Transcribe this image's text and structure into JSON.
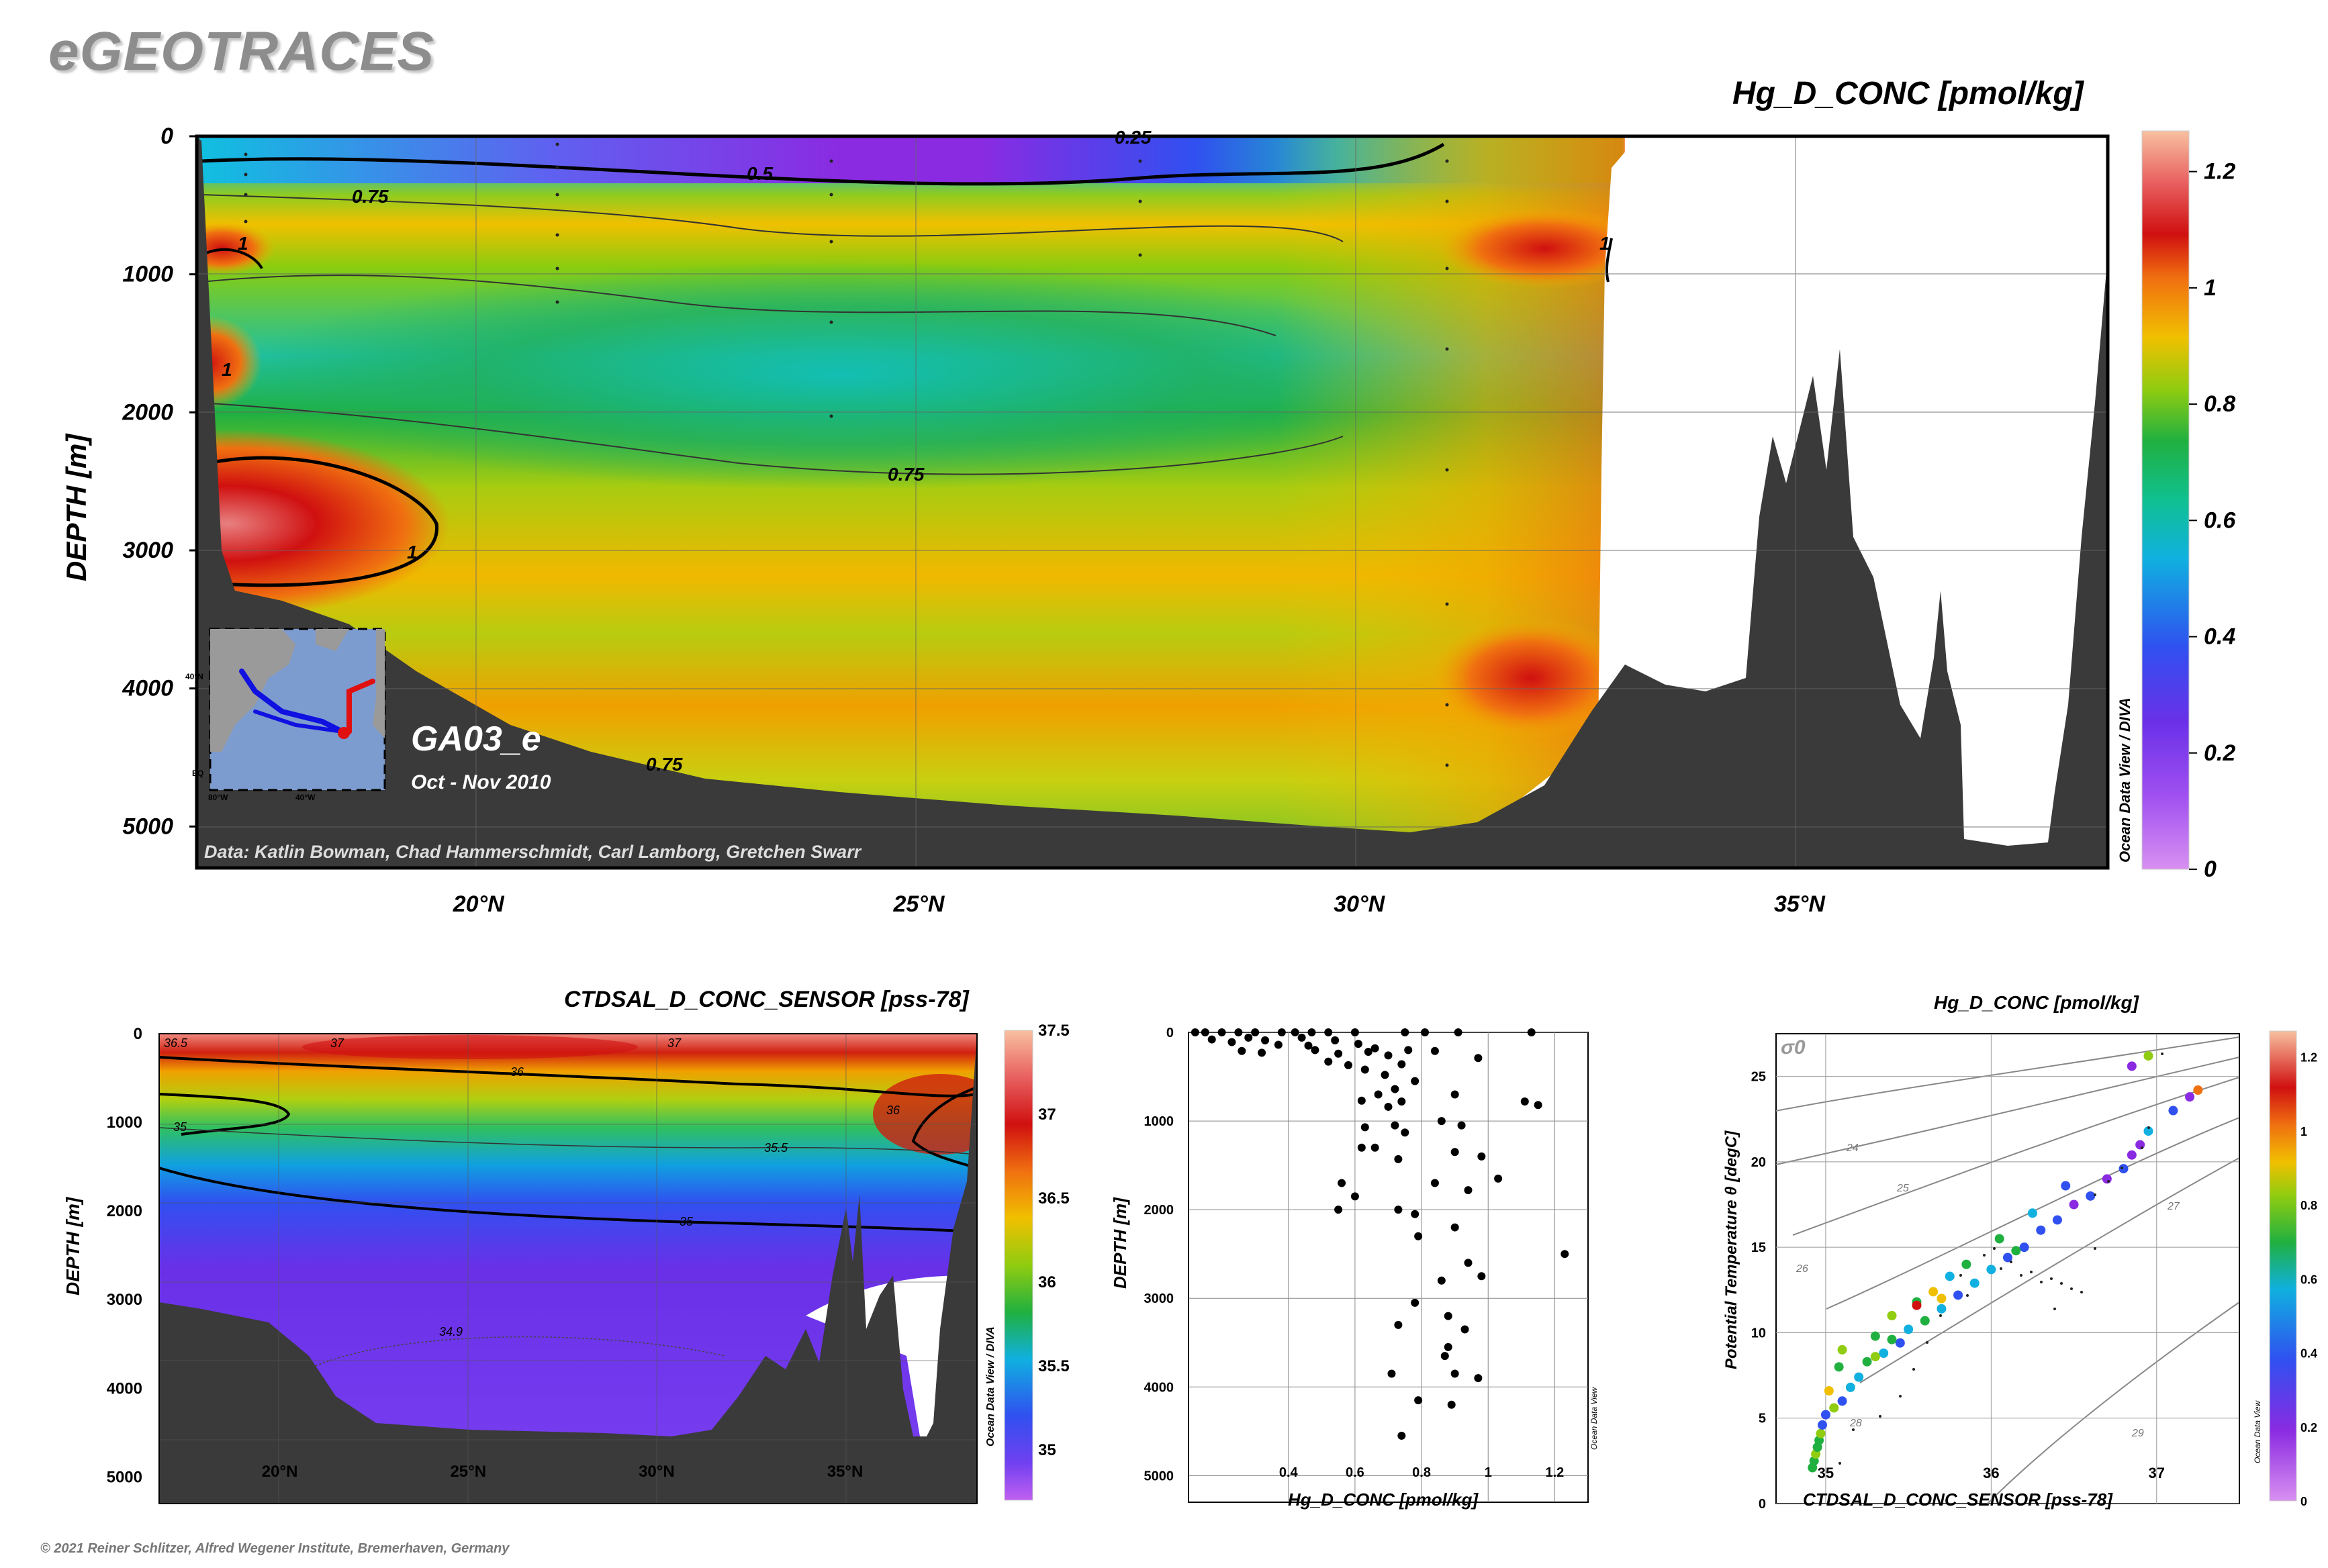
{
  "app_title": "eGEOTRACES",
  "copyright": "© 2021 Reiner Schlitzer, Alfred Wegener Institute, Bremerhaven, Germany",
  "main_panel": {
    "title": "Hg_D_CONC [pmol/kg]",
    "ylabel": "DEPTH [m]",
    "section_name": "GA03_e",
    "date_range": "Oct - Nov 2010",
    "credits": "Data: Katlin Bowman, Chad Hammerschmidt, Carl Lamborg, Gretchen Swarr",
    "odv_credit": "Ocean Data View / DIVA",
    "contour_labels": [
      "0.25",
      "0.5",
      "0.75",
      "1",
      "1",
      "1",
      "0.75",
      "1",
      "0.75"
    ],
    "inset_labels": [
      "40°N",
      "80°W",
      "40°W",
      "EQ"
    ]
  },
  "sal_panel": {
    "title": "CTDSAL_D_CONC_SENSOR [pss-78]",
    "ylabel": "DEPTH [m]",
    "odv_credit": "Ocean Data View / DIVA",
    "contour_labels": [
      "36.5",
      "37",
      "37",
      "36",
      "35",
      "35.5",
      "36",
      "35",
      "34.9"
    ]
  },
  "profile_panel": {
    "xlabel": "Hg_D_CONC [pmol/kg]",
    "ylabel": "DEPTH [m]",
    "odv_credit": "Ocean Data View"
  },
  "ts_panel": {
    "title": "Hg_D_CONC [pmol/kg]",
    "xlabel": "CTDSAL_D_CONC_SENSOR [pss-78]",
    "ylabel": "Potential Temperature θ [degC]",
    "sigma_label": "σ0",
    "isopycnal_labels": [
      "24",
      "25",
      "26",
      "27",
      "28",
      "29"
    ],
    "odv_credit": "Ocean Data View"
  },
  "chart_data": [
    {
      "id": "hg_section",
      "type": "heatmap",
      "title": "Hg_D_CONC [pmol/kg]",
      "xlabel": "",
      "ylabel": "DEPTH [m]",
      "x_ticks": [
        "20°N",
        "25°N",
        "30°N",
        "35°N"
      ],
      "x_tick_values": [
        20,
        25,
        30,
        35
      ],
      "y_ticks": [
        "0",
        "1000",
        "2000",
        "3000",
        "4000",
        "5000"
      ],
      "xlim": [
        16.8,
        38.5
      ],
      "ylim": [
        0,
        5300
      ],
      "colorbar": {
        "ticks": [
          "0",
          "0.2",
          "0.4",
          "0.6",
          "0.8",
          "1",
          "1.2"
        ],
        "range": [
          0,
          1.27
        ],
        "colors": [
          "#d890f0",
          "#8a2be2",
          "#3050f0",
          "#10c0e0",
          "#20b040",
          "#88cc10",
          "#f0c000",
          "#f07010",
          "#d01010",
          "#e06060",
          "#f0b090"
        ]
      },
      "grid": true
    },
    {
      "id": "sal_section",
      "type": "heatmap",
      "title": "CTDSAL_D_CONC_SENSOR [pss-78]",
      "ylabel": "DEPTH [m]",
      "x_ticks": [
        "20°N",
        "25°N",
        "30°N",
        "35°N"
      ],
      "x_tick_values": [
        20,
        25,
        30,
        35
      ],
      "y_ticks": [
        "0",
        "1000",
        "2000",
        "3000",
        "4000",
        "5000"
      ],
      "xlim": [
        16.8,
        38.5
      ],
      "ylim": [
        0,
        5300
      ],
      "colorbar": {
        "ticks": [
          "35",
          "35.5",
          "36",
          "36.5",
          "37",
          "37.5"
        ],
        "range": [
          34.7,
          37.5
        ]
      },
      "grid": true
    },
    {
      "id": "hg_profile",
      "type": "scatter",
      "xlabel": "Hg_D_CONC [pmol/kg]",
      "ylabel": "DEPTH [m]",
      "x_ticks": [
        "0.4",
        "0.6",
        "0.8",
        "1",
        "1.2"
      ],
      "x_tick_values": [
        0.4,
        0.6,
        0.8,
        1.0,
        1.2
      ],
      "y_ticks": [
        "0",
        "1000",
        "2000",
        "3000",
        "4000",
        "5000"
      ],
      "xlim": [
        0.1,
        1.3
      ],
      "ylim": [
        0,
        5300
      ],
      "grid": true,
      "points": [
        [
          0.12,
          0
        ],
        [
          0.15,
          0
        ],
        [
          0.2,
          0
        ],
        [
          0.25,
          0
        ],
        [
          0.3,
          0
        ],
        [
          0.38,
          0
        ],
        [
          0.42,
          0
        ],
        [
          0.47,
          0
        ],
        [
          0.52,
          0
        ],
        [
          0.6,
          0
        ],
        [
          0.75,
          0
        ],
        [
          0.81,
          0
        ],
        [
          0.91,
          0
        ],
        [
          1.13,
          0
        ],
        [
          0.17,
          80
        ],
        [
          0.23,
          110
        ],
        [
          0.28,
          60
        ],
        [
          0.33,
          90
        ],
        [
          0.37,
          140
        ],
        [
          0.44,
          60
        ],
        [
          0.46,
          150
        ],
        [
          0.54,
          90
        ],
        [
          0.61,
          130
        ],
        [
          0.66,
          180
        ],
        [
          0.26,
          210
        ],
        [
          0.32,
          230
        ],
        [
          0.48,
          200
        ],
        [
          0.55,
          240
        ],
        [
          0.64,
          220
        ],
        [
          0.7,
          260
        ],
        [
          0.76,
          200
        ],
        [
          0.84,
          210
        ],
        [
          0.97,
          290
        ],
        [
          0.52,
          330
        ],
        [
          0.58,
          370
        ],
        [
          0.63,
          420
        ],
        [
          0.74,
          360
        ],
        [
          0.69,
          480
        ],
        [
          0.78,
          550
        ],
        [
          0.9,
          700
        ],
        [
          0.72,
          640
        ],
        [
          0.67,
          700
        ],
        [
          0.62,
          770
        ],
        [
          0.74,
          780
        ],
        [
          0.7,
          840
        ],
        [
          1.15,
          820
        ],
        [
          1.11,
          780
        ],
        [
          0.63,
          1070
        ],
        [
          0.72,
          1050
        ],
        [
          0.75,
          1130
        ],
        [
          0.86,
          1000
        ],
        [
          0.92,
          1050
        ],
        [
          0.98,
          1400
        ],
        [
          0.62,
          1300
        ],
        [
          0.66,
          1300
        ],
        [
          0.73,
          1430
        ],
        [
          0.9,
          1350
        ],
        [
          1.03,
          1650
        ],
        [
          0.56,
          1700
        ],
        [
          0.6,
          1850
        ],
        [
          0.55,
          2000
        ],
        [
          0.73,
          2000
        ],
        [
          0.78,
          2050
        ],
        [
          0.84,
          1700
        ],
        [
          0.94,
          1780
        ],
        [
          0.9,
          2200
        ],
        [
          0.79,
          2300
        ],
        [
          0.94,
          2600
        ],
        [
          0.86,
          2800
        ],
        [
          1.23,
          2500
        ],
        [
          0.98,
          2750
        ],
        [
          0.78,
          3050
        ],
        [
          0.73,
          3300
        ],
        [
          0.88,
          3200
        ],
        [
          0.93,
          3350
        ],
        [
          0.88,
          3550
        ],
        [
          0.87,
          3650
        ],
        [
          0.9,
          3850
        ],
        [
          0.71,
          3850
        ],
        [
          0.97,
          3900
        ],
        [
          0.79,
          4150
        ],
        [
          0.89,
          4200
        ],
        [
          0.74,
          4550
        ]
      ]
    },
    {
      "id": "ts_diagram",
      "type": "scatter",
      "title": "Hg_D_CONC [pmol/kg]",
      "xlabel": "CTDSAL_D_CONC_SENSOR [pss-78]",
      "ylabel": "Potential Temperature θ [degC]",
      "x_ticks": [
        "35",
        "36",
        "37"
      ],
      "x_tick_values": [
        35,
        36,
        37
      ],
      "y_ticks": [
        "0",
        "5",
        "10",
        "15",
        "20",
        "25"
      ],
      "y_tick_values": [
        0,
        5,
        10,
        15,
        20,
        25
      ],
      "xlim": [
        34.7,
        37.5
      ],
      "ylim": [
        0,
        27.5
      ],
      "grid": true,
      "colorbar": {
        "ticks": [
          "0",
          "0.2",
          "0.4",
          "0.6",
          "0.8",
          "1",
          "1.2"
        ],
        "range": [
          0,
          1.27
        ]
      },
      "points": [
        [
          34.92,
          2.1,
          0.82
        ],
        [
          34.93,
          2.5,
          0.75
        ],
        [
          34.94,
          2.9,
          0.9
        ],
        [
          34.95,
          3.3,
          0.8
        ],
        [
          34.96,
          3.7,
          0.7
        ],
        [
          34.97,
          4.1,
          0.85
        ],
        [
          34.98,
          4.6,
          0.5
        ],
        [
          35.0,
          5.2,
          0.55
        ],
        [
          35.05,
          5.6,
          0.9
        ],
        [
          35.1,
          6.0,
          0.42
        ],
        [
          35.02,
          6.6,
          0.95
        ],
        [
          35.15,
          6.8,
          0.62
        ],
        [
          35.2,
          7.4,
          0.68
        ],
        [
          35.08,
          8.0,
          0.78
        ],
        [
          35.25,
          8.3,
          0.7
        ],
        [
          35.35,
          8.8,
          0.6
        ],
        [
          35.1,
          9.0,
          0.9
        ],
        [
          35.45,
          9.4,
          0.55
        ],
        [
          35.3,
          9.8,
          0.82
        ],
        [
          35.5,
          10.2,
          0.65
        ],
        [
          35.6,
          10.7,
          0.72
        ],
        [
          35.4,
          11.0,
          0.88
        ],
        [
          35.7,
          11.4,
          0.6
        ],
        [
          35.55,
          11.8,
          0.75
        ],
        [
          35.8,
          12.2,
          0.5
        ],
        [
          35.65,
          12.4,
          0.95
        ],
        [
          35.9,
          12.9,
          0.58
        ],
        [
          35.75,
          13.3,
          0.68
        ],
        [
          36.0,
          13.7,
          0.62
        ],
        [
          35.85,
          14.0,
          0.8
        ],
        [
          36.1,
          14.4,
          0.55
        ],
        [
          36.2,
          15.0,
          0.45
        ],
        [
          36.05,
          15.5,
          0.72
        ],
        [
          36.3,
          16.0,
          0.4
        ],
        [
          36.4,
          16.6,
          0.48
        ],
        [
          36.25,
          17.0,
          0.6
        ],
        [
          36.5,
          17.5,
          0.38
        ],
        [
          36.6,
          18.0,
          0.42
        ],
        [
          36.45,
          18.6,
          0.55
        ],
        [
          36.7,
          19.0,
          0.35
        ],
        [
          36.8,
          19.6,
          0.4
        ],
        [
          36.85,
          20.4,
          0.32
        ],
        [
          36.9,
          21.0,
          0.3
        ],
        [
          36.95,
          21.8,
          0.65
        ],
        [
          37.1,
          23.0,
          0.45
        ],
        [
          37.2,
          23.8,
          0.38
        ],
        [
          37.25,
          24.2,
          1.05
        ],
        [
          36.85,
          25.6,
          0.35
        ],
        [
          36.95,
          26.2,
          0.85
        ],
        [
          35.55,
          11.6,
          1.12
        ],
        [
          35.7,
          12.0,
          1.0
        ],
        [
          35.4,
          9.6,
          0.82
        ],
        [
          35.3,
          8.6,
          0.9
        ],
        [
          36.15,
          14.8,
          0.7
        ]
      ]
    }
  ]
}
